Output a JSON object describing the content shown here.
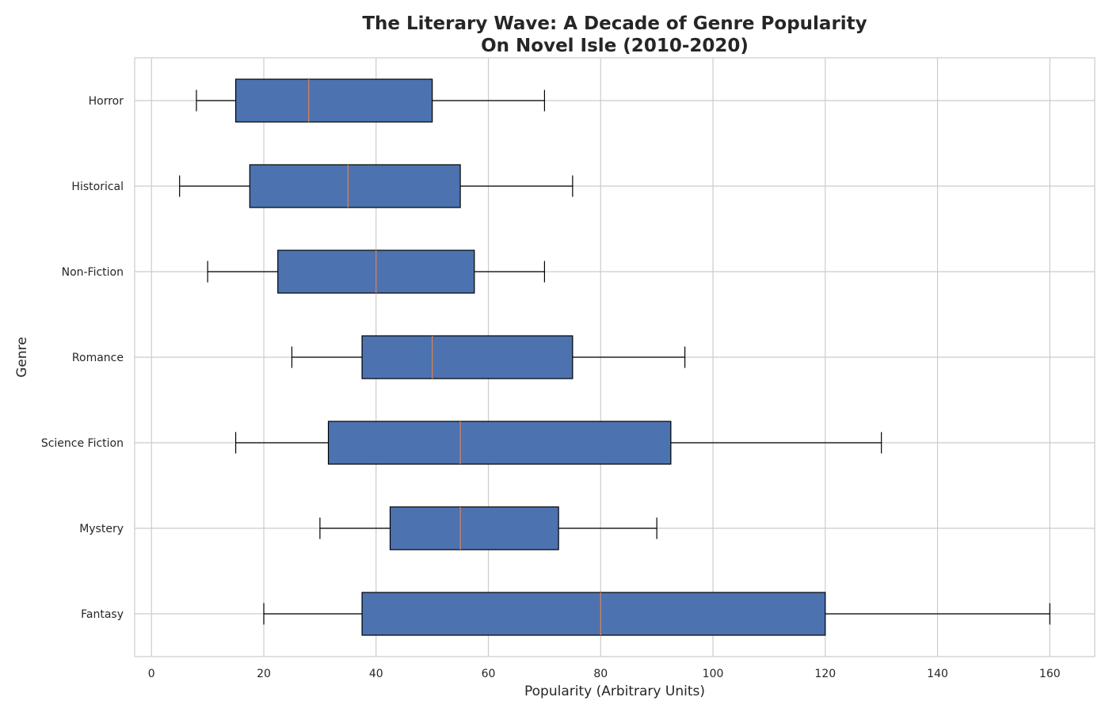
{
  "chart_data": {
    "type": "box",
    "orientation": "horizontal",
    "title": "The Literary Wave: A Decade of Genre Popularity\nOn Novel Isle (2010-2020)",
    "title_lines": [
      "The Literary Wave: A Decade of Genre Popularity",
      "On Novel Isle (2010-2020)"
    ],
    "xlabel": "Popularity (Arbitrary Units)",
    "ylabel": "Genre",
    "xlim": [
      -3,
      168
    ],
    "xticks": [
      0,
      20,
      40,
      60,
      80,
      100,
      120,
      140,
      160
    ],
    "grid": true,
    "categories": [
      "Fantasy",
      "Mystery",
      "Science Fiction",
      "Romance",
      "Non-Fiction",
      "Historical",
      "Horror"
    ],
    "boxes": [
      {
        "category": "Fantasy",
        "min": 20,
        "q1": 37.5,
        "median": 80,
        "q3": 120,
        "max": 160
      },
      {
        "category": "Mystery",
        "min": 30,
        "q1": 42.5,
        "median": 55,
        "q3": 72.5,
        "max": 90
      },
      {
        "category": "Science Fiction",
        "min": 15,
        "q1": 31.5,
        "median": 55,
        "q3": 92.5,
        "max": 130
      },
      {
        "category": "Romance",
        "min": 25,
        "q1": 37.5,
        "median": 50,
        "q3": 75,
        "max": 95
      },
      {
        "category": "Non-Fiction",
        "min": 10,
        "q1": 22.5,
        "median": 40,
        "q3": 57.5,
        "max": 70
      },
      {
        "category": "Historical",
        "min": 5,
        "q1": 17.5,
        "median": 35,
        "q3": 55,
        "max": 75
      },
      {
        "category": "Horror",
        "min": 8,
        "q1": 15,
        "median": 28,
        "q3": 50,
        "max": 70
      }
    ],
    "colors": {
      "box_fill": "#4c72b0",
      "box_edge": "#000000",
      "median": "#dd8452",
      "whisker": "#000000",
      "grid": "#cccccc",
      "frame": "#cccccc",
      "text": "#262626"
    }
  }
}
